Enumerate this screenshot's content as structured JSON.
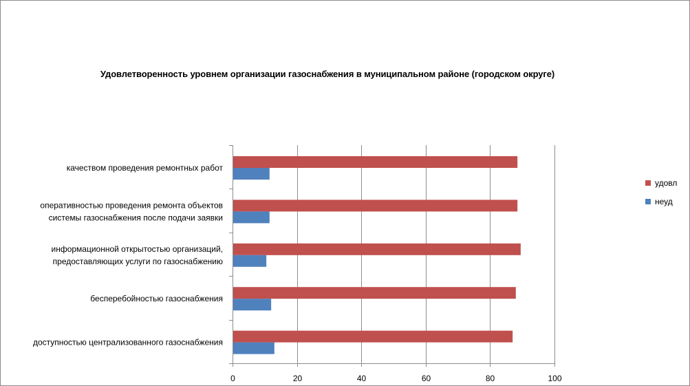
{
  "chart_data": {
    "type": "bar",
    "orientation": "horizontal",
    "title": "Удовлетворенность уровнем организации газоснабжения в муниципальном районе (городском округе)",
    "categories": [
      [
        "качеством проведения ремонтных работ"
      ],
      [
        "оперативностью проведения ремонта объектов",
        "системы газоснабжения после подачи заявки"
      ],
      [
        "информационной открытостью организаций,",
        "предоставляющих услуги по газоснабжению"
      ],
      [
        "бесперебойностью газоснабжения"
      ],
      [
        "доступностью централизованного газоснабжения"
      ]
    ],
    "series": [
      {
        "name": "удовл",
        "color": "#c0504d",
        "values": [
          88.5,
          88.5,
          89.5,
          88,
          87
        ]
      },
      {
        "name": "неуд",
        "color": "#4f81bd",
        "values": [
          11.5,
          11.5,
          10.5,
          12,
          13
        ]
      }
    ],
    "xlim": [
      0,
      100
    ],
    "xticks": [
      0,
      20,
      40,
      60,
      80,
      100
    ],
    "grid": true,
    "legend_position": "right"
  }
}
